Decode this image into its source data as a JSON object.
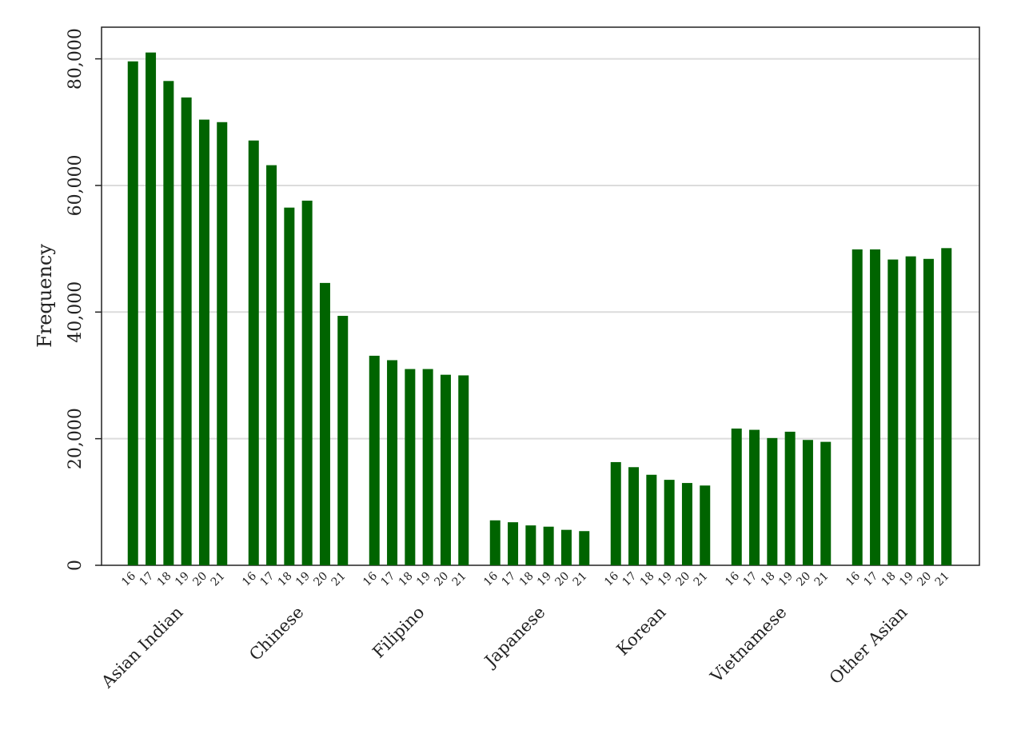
{
  "chart_data": {
    "type": "bar",
    "y_label": "Frequency",
    "color": "#006400",
    "categories": [
      "Asian Indian",
      "Chinese",
      "Filipino",
      "Japanese",
      "Korean",
      "Vietnamese",
      "Other Asian"
    ],
    "series": [
      {
        "name": "16",
        "values": [
          79600,
          67100,
          33100,
          7100,
          16300,
          21600,
          49900
        ]
      },
      {
        "name": "17",
        "values": [
          81000,
          63200,
          32400,
          6800,
          15500,
          21400,
          49900
        ]
      },
      {
        "name": "18",
        "values": [
          76500,
          56500,
          31000,
          6300,
          14300,
          20100,
          48300
        ]
      },
      {
        "name": "19",
        "values": [
          73900,
          57600,
          31000,
          6100,
          13500,
          21100,
          48800
        ]
      },
      {
        "name": "20",
        "values": [
          70400,
          44600,
          30100,
          5600,
          13000,
          19800,
          48400
        ]
      },
      {
        "name": "21",
        "values": [
          70000,
          39400,
          30000,
          5400,
          12600,
          19500,
          50100
        ]
      }
    ],
    "ylim": [
      0,
      85000
    ],
    "yticks": [
      0,
      {
        "value": 20000,
        "label": "20,000"
      },
      {
        "value": 40000,
        "label": "40,000"
      },
      {
        "value": 60000,
        "label": "60,000"
      },
      {
        "value": 80000,
        "label": "80,000"
      }
    ],
    "grid": true
  }
}
